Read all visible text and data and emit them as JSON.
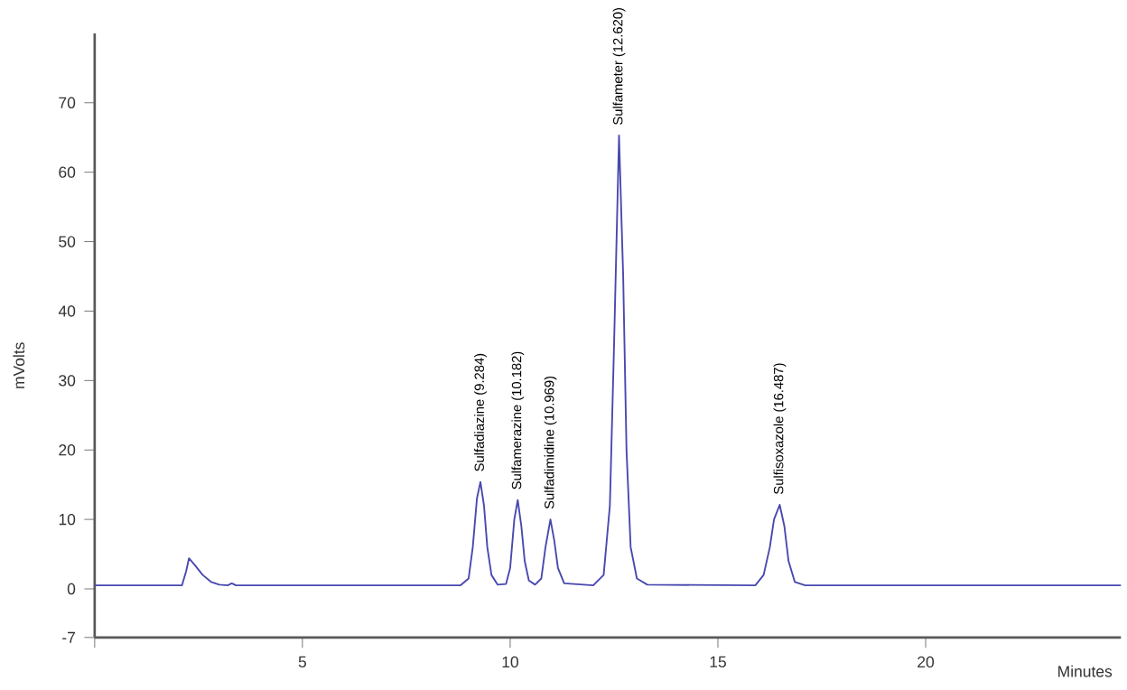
{
  "chart_data": {
    "type": "line",
    "xlabel": "Minutes",
    "ylabel": "mVolts",
    "xlim": [
      0,
      24.7
    ],
    "ylim": [
      -7,
      80
    ],
    "xticks": [
      {
        "value": 0,
        "label": null
      },
      5,
      10,
      15,
      20
    ],
    "yticks": [
      -7,
      0,
      10,
      20,
      30,
      40,
      50,
      60,
      70
    ],
    "grid": false,
    "marker": "none",
    "line_style": "solid",
    "series": [
      {
        "color": "#4848b0",
        "x": [
          0,
          2.1,
          2.2,
          2.27,
          2.4,
          2.6,
          2.8,
          3.0,
          3.2,
          3.3,
          3.4,
          8.8,
          9.0,
          9.1,
          9.2,
          9.284,
          9.37,
          9.45,
          9.55,
          9.7,
          9.9,
          10.0,
          10.1,
          10.182,
          10.27,
          10.35,
          10.45,
          10.6,
          10.75,
          10.85,
          10.969,
          11.06,
          11.15,
          11.3,
          12.0,
          12.25,
          12.4,
          12.5,
          12.62,
          12.72,
          12.8,
          12.9,
          13.05,
          13.3,
          15.9,
          16.1,
          16.25,
          16.35,
          16.487,
          16.6,
          16.7,
          16.85,
          17.1,
          24.7
        ],
        "values": [
          0.5,
          0.5,
          2.5,
          4.4,
          3.5,
          2,
          1,
          0.6,
          0.5,
          0.8,
          0.5,
          0.5,
          1.5,
          6,
          13,
          15.4,
          12,
          6,
          2,
          0.6,
          0.7,
          3,
          10,
          12.8,
          9,
          4,
          1.2,
          0.6,
          1.5,
          6,
          10,
          7,
          3,
          0.8,
          0.5,
          2,
          12,
          35,
          65.3,
          45,
          20,
          6,
          1.5,
          0.6,
          0.5,
          2,
          6,
          10,
          12.1,
          9,
          4,
          1,
          0.5,
          0.5
        ]
      }
    ],
    "annotations": [
      {
        "text": "Sulfadiazine (9.284)",
        "x": 9.284,
        "y": 15.4
      },
      {
        "text": "Sulfamerazine (10.182)",
        "x": 10.182,
        "y": 12.8
      },
      {
        "text": "Sulfadimidine (10.969)",
        "x": 10.969,
        "y": 10
      },
      {
        "text": "Sulfameter (12.620)",
        "x": 12.62,
        "y": 65.3
      },
      {
        "text": "Sulfisoxazole (16.487)",
        "x": 16.487,
        "y": 12.1
      }
    ]
  }
}
